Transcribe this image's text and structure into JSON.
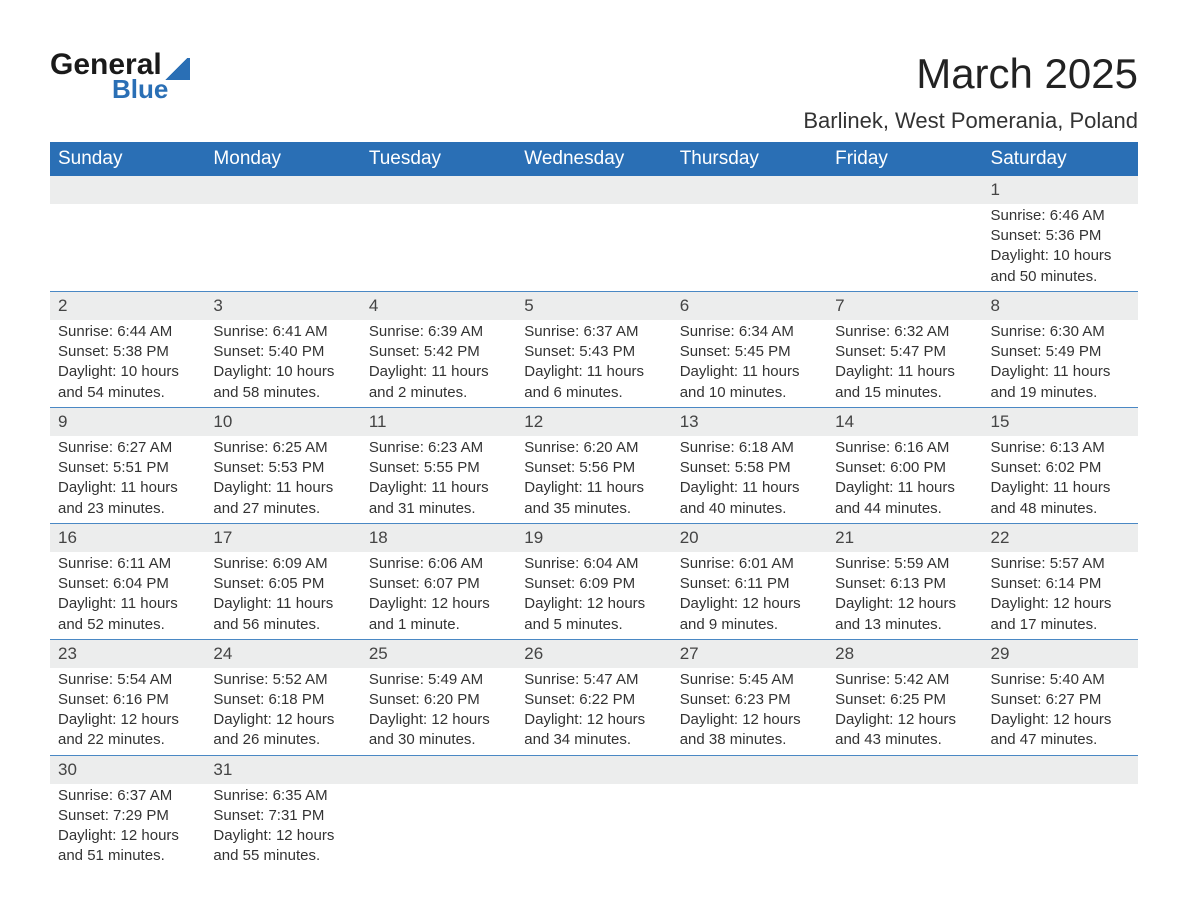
{
  "brand": {
    "word1": "General",
    "word2": "Blue",
    "accent_color": "#2a6fb5"
  },
  "title": "March 2025",
  "location": "Barlinek, West Pomerania, Poland",
  "colors": {
    "header_bg": "#2a6fb5",
    "header_text": "#ffffff",
    "daynum_bg": "#eceded",
    "text": "#333333",
    "row_border": "#4a88c4",
    "page_bg": "#ffffff"
  },
  "fonts": {
    "title_size": 42,
    "location_size": 22,
    "th_size": 19,
    "cell_size": 15,
    "daynum_size": 17
  },
  "weekdays": [
    "Sunday",
    "Monday",
    "Tuesday",
    "Wednesday",
    "Thursday",
    "Friday",
    "Saturday"
  ],
  "labels": {
    "sunrise": "Sunrise: ",
    "sunset": "Sunset: ",
    "daylight": "Daylight: "
  },
  "grid": [
    [
      null,
      null,
      null,
      null,
      null,
      null,
      {
        "n": 1,
        "sunrise": "6:46 AM",
        "sunset": "5:36 PM",
        "daylight": "10 hours and 50 minutes."
      }
    ],
    [
      {
        "n": 2,
        "sunrise": "6:44 AM",
        "sunset": "5:38 PM",
        "daylight": "10 hours and 54 minutes."
      },
      {
        "n": 3,
        "sunrise": "6:41 AM",
        "sunset": "5:40 PM",
        "daylight": "10 hours and 58 minutes."
      },
      {
        "n": 4,
        "sunrise": "6:39 AM",
        "sunset": "5:42 PM",
        "daylight": "11 hours and 2 minutes."
      },
      {
        "n": 5,
        "sunrise": "6:37 AM",
        "sunset": "5:43 PM",
        "daylight": "11 hours and 6 minutes."
      },
      {
        "n": 6,
        "sunrise": "6:34 AM",
        "sunset": "5:45 PM",
        "daylight": "11 hours and 10 minutes."
      },
      {
        "n": 7,
        "sunrise": "6:32 AM",
        "sunset": "5:47 PM",
        "daylight": "11 hours and 15 minutes."
      },
      {
        "n": 8,
        "sunrise": "6:30 AM",
        "sunset": "5:49 PM",
        "daylight": "11 hours and 19 minutes."
      }
    ],
    [
      {
        "n": 9,
        "sunrise": "6:27 AM",
        "sunset": "5:51 PM",
        "daylight": "11 hours and 23 minutes."
      },
      {
        "n": 10,
        "sunrise": "6:25 AM",
        "sunset": "5:53 PM",
        "daylight": "11 hours and 27 minutes."
      },
      {
        "n": 11,
        "sunrise": "6:23 AM",
        "sunset": "5:55 PM",
        "daylight": "11 hours and 31 minutes."
      },
      {
        "n": 12,
        "sunrise": "6:20 AM",
        "sunset": "5:56 PM",
        "daylight": "11 hours and 35 minutes."
      },
      {
        "n": 13,
        "sunrise": "6:18 AM",
        "sunset": "5:58 PM",
        "daylight": "11 hours and 40 minutes."
      },
      {
        "n": 14,
        "sunrise": "6:16 AM",
        "sunset": "6:00 PM",
        "daylight": "11 hours and 44 minutes."
      },
      {
        "n": 15,
        "sunrise": "6:13 AM",
        "sunset": "6:02 PM",
        "daylight": "11 hours and 48 minutes."
      }
    ],
    [
      {
        "n": 16,
        "sunrise": "6:11 AM",
        "sunset": "6:04 PM",
        "daylight": "11 hours and 52 minutes."
      },
      {
        "n": 17,
        "sunrise": "6:09 AM",
        "sunset": "6:05 PM",
        "daylight": "11 hours and 56 minutes."
      },
      {
        "n": 18,
        "sunrise": "6:06 AM",
        "sunset": "6:07 PM",
        "daylight": "12 hours and 1 minute."
      },
      {
        "n": 19,
        "sunrise": "6:04 AM",
        "sunset": "6:09 PM",
        "daylight": "12 hours and 5 minutes."
      },
      {
        "n": 20,
        "sunrise": "6:01 AM",
        "sunset": "6:11 PM",
        "daylight": "12 hours and 9 minutes."
      },
      {
        "n": 21,
        "sunrise": "5:59 AM",
        "sunset": "6:13 PM",
        "daylight": "12 hours and 13 minutes."
      },
      {
        "n": 22,
        "sunrise": "5:57 AM",
        "sunset": "6:14 PM",
        "daylight": "12 hours and 17 minutes."
      }
    ],
    [
      {
        "n": 23,
        "sunrise": "5:54 AM",
        "sunset": "6:16 PM",
        "daylight": "12 hours and 22 minutes."
      },
      {
        "n": 24,
        "sunrise": "5:52 AM",
        "sunset": "6:18 PM",
        "daylight": "12 hours and 26 minutes."
      },
      {
        "n": 25,
        "sunrise": "5:49 AM",
        "sunset": "6:20 PM",
        "daylight": "12 hours and 30 minutes."
      },
      {
        "n": 26,
        "sunrise": "5:47 AM",
        "sunset": "6:22 PM",
        "daylight": "12 hours and 34 minutes."
      },
      {
        "n": 27,
        "sunrise": "5:45 AM",
        "sunset": "6:23 PM",
        "daylight": "12 hours and 38 minutes."
      },
      {
        "n": 28,
        "sunrise": "5:42 AM",
        "sunset": "6:25 PM",
        "daylight": "12 hours and 43 minutes."
      },
      {
        "n": 29,
        "sunrise": "5:40 AM",
        "sunset": "6:27 PM",
        "daylight": "12 hours and 47 minutes."
      }
    ],
    [
      {
        "n": 30,
        "sunrise": "6:37 AM",
        "sunset": "7:29 PM",
        "daylight": "12 hours and 51 minutes."
      },
      {
        "n": 31,
        "sunrise": "6:35 AM",
        "sunset": "7:31 PM",
        "daylight": "12 hours and 55 minutes."
      },
      null,
      null,
      null,
      null,
      null
    ]
  ]
}
